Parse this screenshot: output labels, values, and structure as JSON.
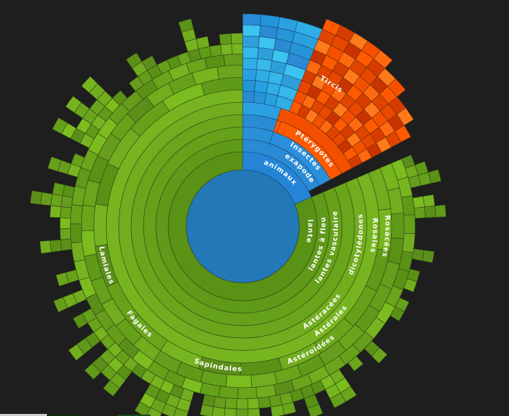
{
  "chart_data": {
    "type": "sunburst",
    "title": "",
    "colors": {
      "background": "#1e1e1e",
      "root": "#2378b8",
      "plants_base": "#5a9216",
      "plants_light": "#7bbd1e",
      "animals": "#2a8ad4",
      "animals_light": "#37b8ec",
      "insects_orange": "#ff5a00",
      "insects_dark": "#d63c00"
    },
    "nodes": [
      {
        "name": "",
        "level": 0,
        "start_deg": 0,
        "end_deg": 360,
        "group": "root"
      },
      {
        "name": "plantes",
        "level": 1,
        "start_deg": 67,
        "end_deg": 360,
        "group": "plants"
      },
      {
        "name": "animaux",
        "level": 1,
        "start_deg": 0,
        "end_deg": 67,
        "group": "animals"
      },
      {
        "name": "Plantes à fleurs",
        "level": 2,
        "start_deg": 67,
        "end_deg": 360,
        "group": "plants"
      },
      {
        "name": "Hexapodes",
        "level": 2,
        "start_deg": 0,
        "end_deg": 62,
        "group": "animals"
      },
      {
        "name": "Plantes vasculaires",
        "level": 3,
        "start_deg": 67,
        "end_deg": 360,
        "group": "plants"
      },
      {
        "name": "Insectes",
        "level": 3,
        "start_deg": 18,
        "end_deg": 62,
        "group": "insects"
      },
      {
        "name": "dicotylédones",
        "level": 4,
        "start_deg": 67,
        "end_deg": 160,
        "group": "plants"
      },
      {
        "name": "Ptérygotes",
        "level": 4,
        "start_deg": 20,
        "end_deg": 62,
        "group": "insects"
      },
      {
        "name": "Rosales",
        "level": 5,
        "start_deg": 67,
        "end_deg": 122,
        "group": "plants"
      },
      {
        "name": "Astéracées",
        "level": 5,
        "start_deg": 122,
        "end_deg": 160,
        "group": "plants"
      },
      {
        "name": "Rosacées",
        "level": 6,
        "start_deg": 67,
        "end_deg": 122,
        "group": "plants"
      },
      {
        "name": "Astérales",
        "level": 6,
        "start_deg": 122,
        "end_deg": 148,
        "group": "plants"
      },
      {
        "name": "Astéroidées",
        "level": 7,
        "start_deg": 140,
        "end_deg": 160,
        "group": "plants"
      },
      {
        "name": "Sapindales",
        "level": 7,
        "start_deg": 175,
        "end_deg": 205,
        "group": "plants"
      },
      {
        "name": "Fagales",
        "level": 7,
        "start_deg": 215,
        "end_deg": 238,
        "group": "plants"
      },
      {
        "name": "Lamiales",
        "level": 7,
        "start_deg": 240,
        "end_deg": 268,
        "group": "plants"
      },
      {
        "name": "Tircis",
        "level": 9,
        "start_deg": 22,
        "end_deg": 40,
        "group": "insects"
      }
    ],
    "labels": [
      {
        "text": "animaux"
      },
      {
        "text": "plantes"
      },
      {
        "text": "Hexapodes"
      },
      {
        "text": "Plantes à fleurs"
      },
      {
        "text": "Insectes"
      },
      {
        "text": "Plantes vasculaires"
      },
      {
        "text": "Ptérygotes"
      },
      {
        "text": "dicotylédones"
      },
      {
        "text": "Rosales"
      },
      {
        "text": "Rosacées"
      },
      {
        "text": "Astéracées"
      },
      {
        "text": "Astérales"
      },
      {
        "text": "Astéroidées"
      },
      {
        "text": "Sapindales"
      },
      {
        "text": "Fagales"
      },
      {
        "text": "Lamiales"
      },
      {
        "text": "Tircis"
      }
    ]
  }
}
